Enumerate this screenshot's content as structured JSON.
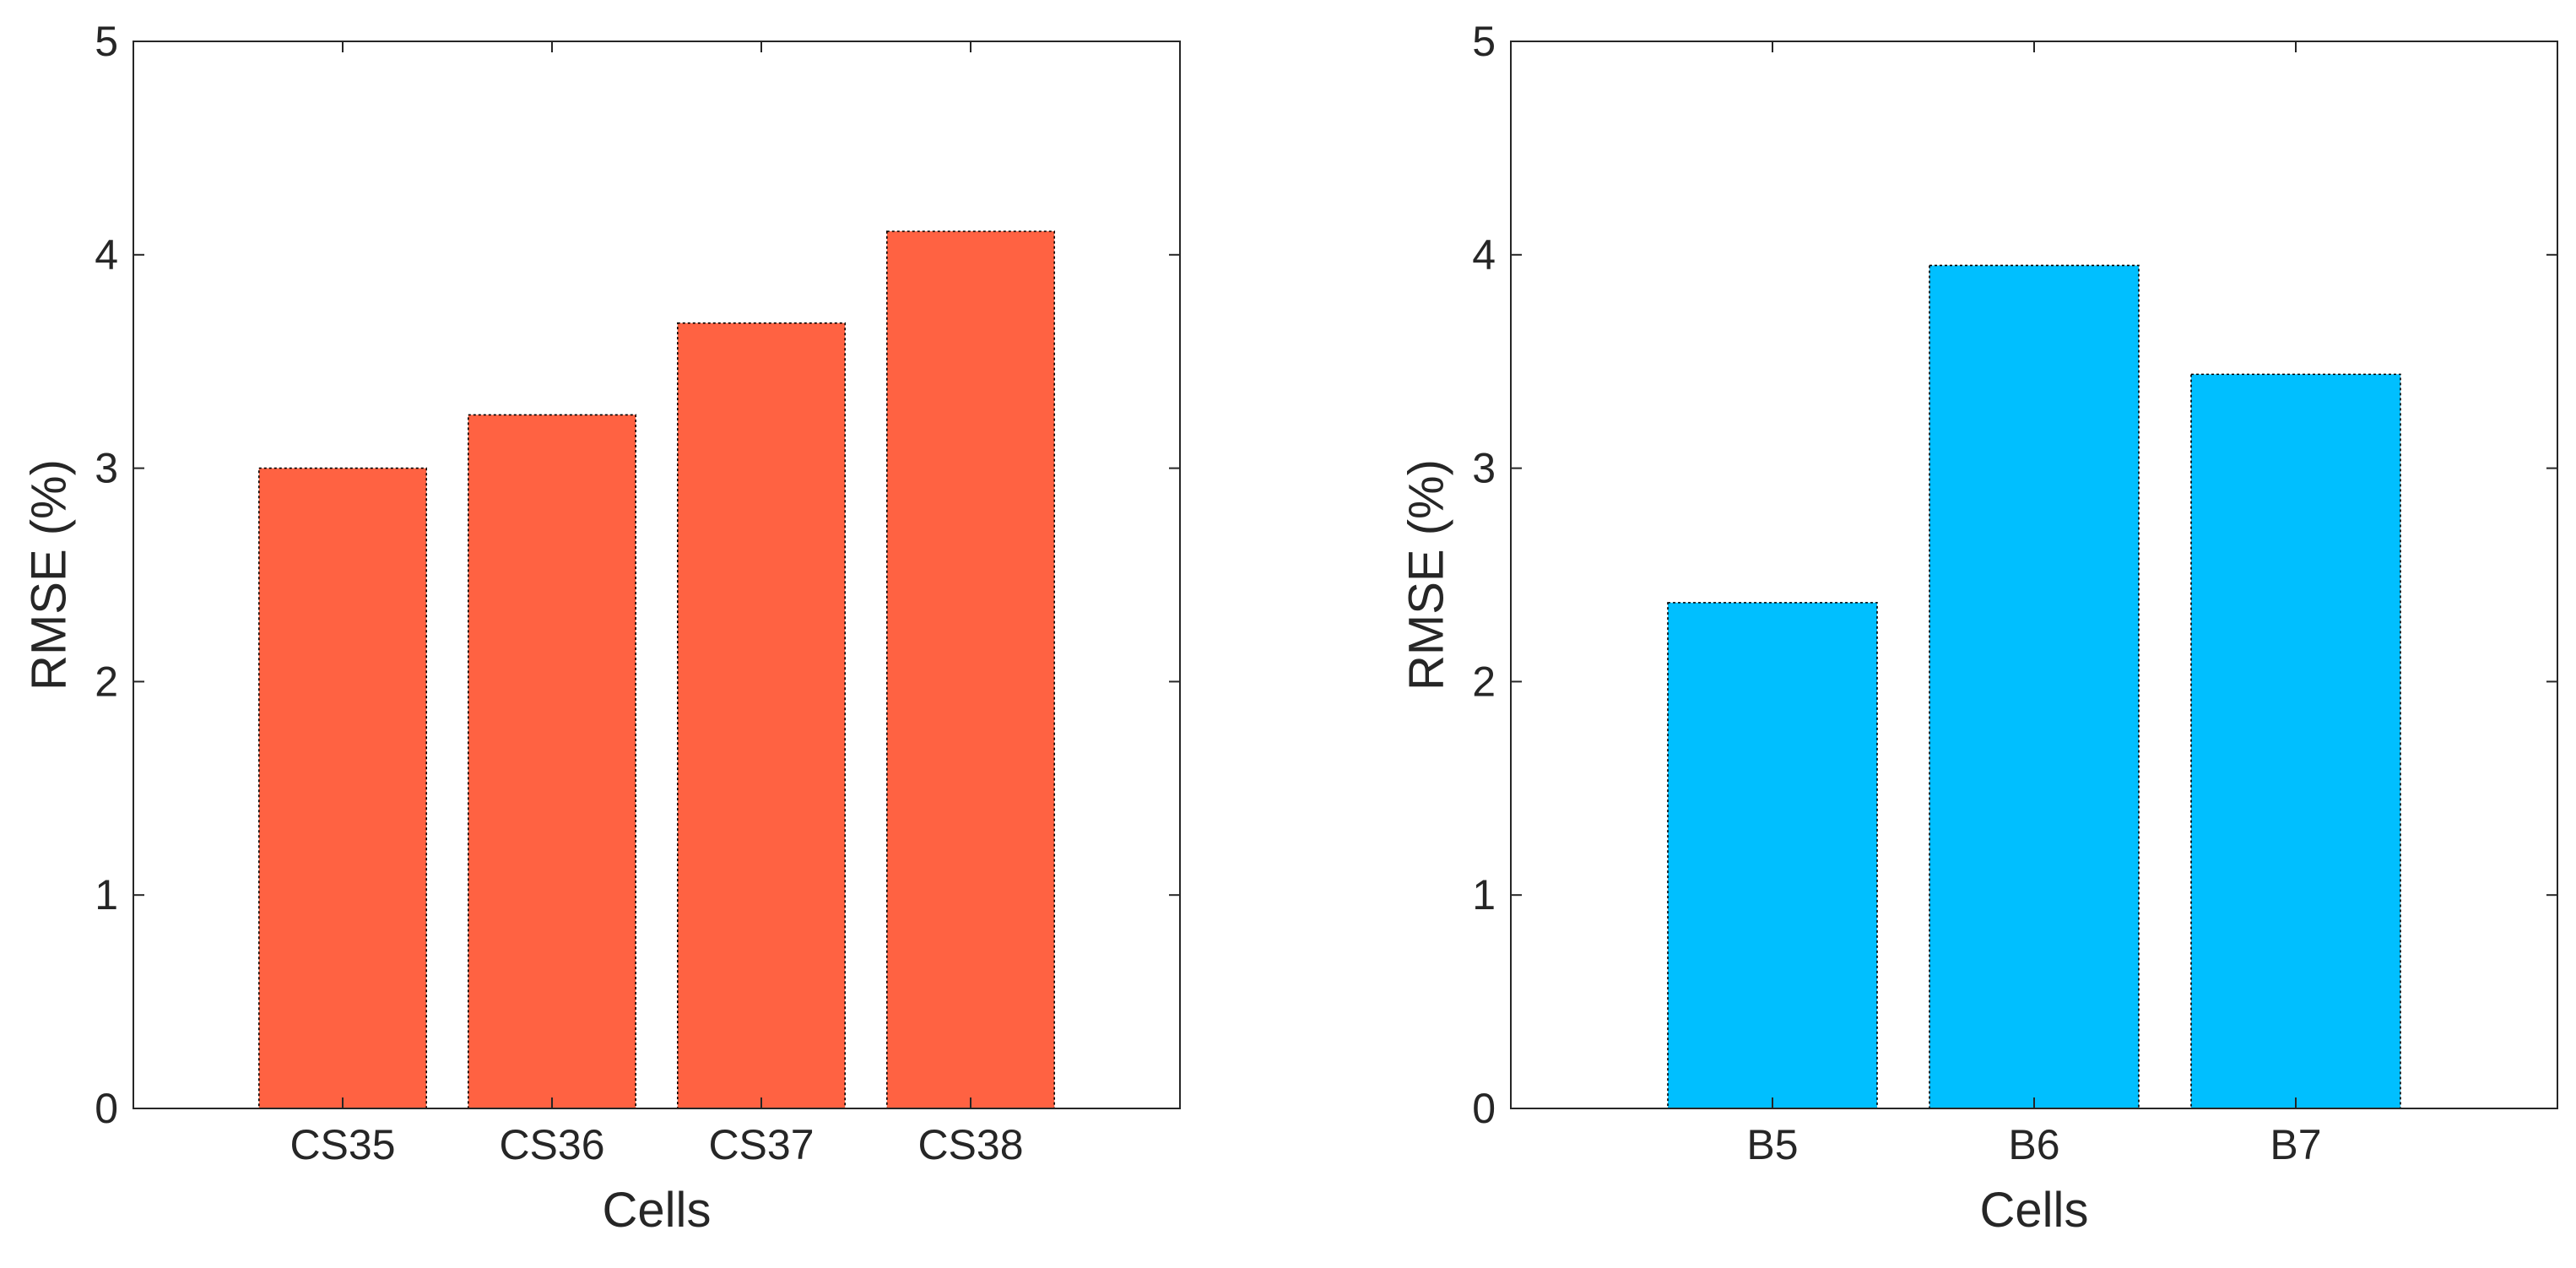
{
  "chart_data": [
    {
      "type": "bar",
      "categories": [
        "CS35",
        "CS36",
        "CS37",
        "CS38"
      ],
      "values": [
        3.0,
        3.25,
        3.68,
        4.11
      ],
      "title": "",
      "xlabel": "Cells",
      "ylabel": "RMSE (%)",
      "ylim": [
        0,
        5
      ],
      "yticks": [
        "0",
        "1",
        "2",
        "3",
        "4",
        "5"
      ],
      "grid": false,
      "bar_color": "#FF6242"
    },
    {
      "type": "bar",
      "categories": [
        "B5",
        "B6",
        "B7"
      ],
      "values": [
        2.37,
        3.95,
        3.44
      ],
      "title": "",
      "xlabel": "Cells",
      "ylabel": "RMSE (%)",
      "ylim": [
        0,
        5
      ],
      "yticks": [
        "0",
        "1",
        "2",
        "3",
        "4",
        "5"
      ],
      "grid": false,
      "bar_color": "#00BFFF"
    }
  ]
}
